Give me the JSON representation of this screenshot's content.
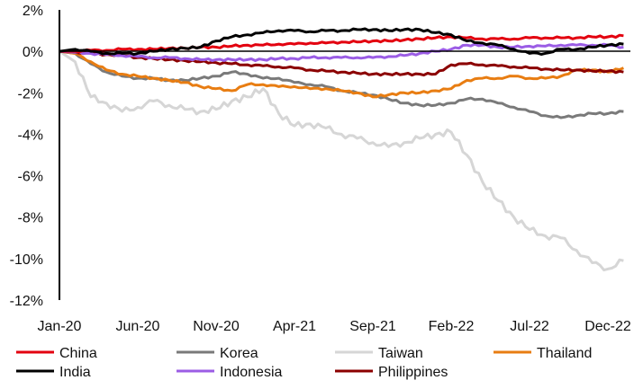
{
  "chart_data": {
    "type": "line",
    "title": "",
    "xlabel": "",
    "ylabel": "",
    "ylim": [
      -12,
      2
    ],
    "y_ticks": [
      2,
      0,
      -2,
      -4,
      -6,
      -8,
      -10,
      -12
    ],
    "y_tick_labels": [
      "2%",
      "0%",
      "-2%",
      "-4%",
      "-6%",
      "-8%",
      "-10%",
      "-12%"
    ],
    "x_tick_labels": [
      "Jan-20",
      "Jun-20",
      "Nov-20",
      "Apr-21",
      "Sep-21",
      "Feb-22",
      "Jul-22",
      "Dec-22"
    ],
    "x_tick_month_index": [
      0,
      5,
      10,
      15,
      20,
      25,
      30,
      35
    ],
    "x_start": "Jan-20",
    "x_step": "1 month",
    "legend_position": "bottom",
    "series": [
      {
        "name": "Taiwan",
        "color": "#d6d6d6",
        "values": [
          0,
          -0.5,
          -2.2,
          -2.5,
          -2.9,
          -2.7,
          -2.4,
          -2.6,
          -2.8,
          -2.9,
          -2.8,
          -2.4,
          -2.2,
          -1.8,
          -3.0,
          -3.6,
          -3.5,
          -3.7,
          -4.0,
          -4.2,
          -4.4,
          -4.6,
          -4.4,
          -4.2,
          -4.0,
          -3.9,
          -5.0,
          -6.3,
          -7.2,
          -8.0,
          -8.6,
          -8.9,
          -9.0,
          -9.6,
          -10.2,
          -10.5,
          -10.1
        ]
      },
      {
        "name": "Korea",
        "color": "#7a7a7a",
        "values": [
          0,
          -0.1,
          -0.6,
          -1.0,
          -1.2,
          -1.3,
          -1.3,
          -1.4,
          -1.4,
          -1.3,
          -1.2,
          -1.0,
          -1.1,
          -1.3,
          -1.3,
          -1.5,
          -1.6,
          -1.7,
          -1.9,
          -2.0,
          -2.1,
          -2.3,
          -2.5,
          -2.6,
          -2.6,
          -2.5,
          -2.3,
          -2.3,
          -2.5,
          -2.7,
          -2.9,
          -3.1,
          -3.2,
          -3.1,
          -3.0,
          -3.0,
          -2.9
        ]
      },
      {
        "name": "Thailand",
        "color": "#e87d12",
        "values": [
          0,
          -0.1,
          -0.5,
          -0.9,
          -1.1,
          -1.2,
          -1.3,
          -1.4,
          -1.5,
          -1.7,
          -1.8,
          -1.9,
          -1.6,
          -1.6,
          -1.7,
          -1.7,
          -1.8,
          -1.8,
          -1.9,
          -2.0,
          -2.2,
          -2.1,
          -2.0,
          -2.0,
          -1.9,
          -1.8,
          -1.4,
          -1.3,
          -1.3,
          -1.2,
          -1.3,
          -1.3,
          -1.2,
          -0.9,
          -0.9,
          -1.0,
          -0.8
        ]
      },
      {
        "name": "Philippines",
        "color": "#8b0000",
        "values": [
          0,
          -0.05,
          -0.1,
          -0.15,
          -0.2,
          -0.3,
          -0.35,
          -0.4,
          -0.45,
          -0.5,
          -0.55,
          -0.6,
          -0.65,
          -0.7,
          -0.75,
          -0.8,
          -0.9,
          -0.95,
          -1.0,
          -1.05,
          -1.1,
          -1.1,
          -1.1,
          -1.1,
          -1.1,
          -0.65,
          -0.6,
          -0.65,
          -0.7,
          -0.75,
          -0.8,
          -0.85,
          -0.9,
          -0.9,
          -0.95,
          -0.95,
          -1.0
        ]
      },
      {
        "name": "Indonesia",
        "color": "#9b5de5",
        "values": [
          0,
          -0.05,
          -0.1,
          -0.15,
          -0.2,
          -0.25,
          -0.3,
          -0.3,
          -0.35,
          -0.4,
          -0.4,
          -0.4,
          -0.4,
          -0.4,
          -0.35,
          -0.35,
          -0.3,
          -0.3,
          -0.3,
          -0.3,
          -0.3,
          -0.25,
          -0.2,
          -0.1,
          0,
          0.1,
          0.3,
          0.3,
          0.2,
          0.2,
          0.25,
          0.25,
          0.3,
          0.3,
          0.3,
          0.3,
          0.2
        ]
      },
      {
        "name": "China",
        "color": "#e3000f",
        "values": [
          0,
          0,
          0.05,
          0.05,
          0.1,
          0.1,
          0.1,
          0.15,
          0.15,
          0.2,
          0.2,
          0.25,
          0.3,
          0.3,
          0.35,
          0.35,
          0.4,
          0.4,
          0.45,
          0.45,
          0.5,
          0.5,
          0.55,
          0.6,
          0.65,
          0.7,
          0.65,
          0.6,
          0.6,
          0.6,
          0.65,
          0.65,
          0.65,
          0.65,
          0.7,
          0.7,
          0.75
        ]
      },
      {
        "name": "India",
        "color": "#000000",
        "values": [
          0,
          0.1,
          0,
          -0.1,
          -0.1,
          -0.1,
          0,
          0.1,
          0.15,
          0.2,
          0.5,
          0.7,
          0.8,
          0.9,
          1.0,
          1.0,
          0.95,
          1.0,
          1.0,
          1.05,
          1.05,
          1.0,
          1.05,
          1.05,
          0.9,
          0.8,
          0.5,
          0.4,
          0.3,
          0.1,
          -0.1,
          -0.1,
          0.1,
          0.1,
          0.2,
          0.3,
          0.35
        ]
      }
    ],
    "legend_order": [
      "China",
      "Korea",
      "Taiwan",
      "Thailand",
      "India",
      "Indonesia",
      "Philippines"
    ]
  }
}
